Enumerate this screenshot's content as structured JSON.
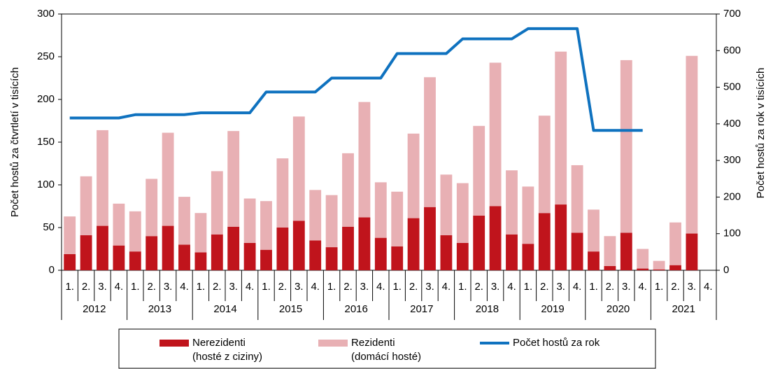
{
  "chart_data": {
    "type": "bar",
    "categories": [
      "1.",
      "2.",
      "3.",
      "4.",
      "1.",
      "2.",
      "3.",
      "4.",
      "1.",
      "2.",
      "3.",
      "4.",
      "1.",
      "2.",
      "3.",
      "4.",
      "1.",
      "2.",
      "3.",
      "4.",
      "1.",
      "2.",
      "3.",
      "4.",
      "1.",
      "2.",
      "3.",
      "4.",
      "1.",
      "2.",
      "3.",
      "4.",
      "1.",
      "2.",
      "3.",
      "4.",
      "1.",
      "2.",
      "3.",
      "4."
    ],
    "years": [
      "2012",
      "2013",
      "2014",
      "2015",
      "2016",
      "2017",
      "2018",
      "2019",
      "2020",
      "2021"
    ],
    "y_label": "Počet hostů za čtvrtletí v tisících",
    "y2_label": "Počet hostů za rok v tisících",
    "ylim": [
      0,
      300
    ],
    "yticks": [
      0,
      50,
      100,
      150,
      200,
      250,
      300
    ],
    "y2lim": [
      0,
      700
    ],
    "y2ticks": [
      0,
      100,
      200,
      300,
      400,
      500,
      600,
      700
    ],
    "stacked": true,
    "series": [
      {
        "name": "Nerezidenti",
        "legend_sublabel": "(hosté z ciziny)",
        "color": "#c0141c",
        "type": "bar",
        "values": [
          19,
          41,
          52,
          29,
          22,
          40,
          52,
          30,
          21,
          42,
          51,
          32,
          24,
          50,
          58,
          35,
          27,
          51,
          62,
          38,
          28,
          61,
          74,
          41,
          32,
          64,
          75,
          42,
          31,
          67,
          77,
          44,
          22,
          5,
          44,
          2,
          1,
          6,
          43,
          null
        ]
      },
      {
        "name": "Rezidenti",
        "legend_sublabel": "(domácí hosté)",
        "color": "#e8b0b4",
        "type": "bar",
        "values": [
          44,
          69,
          112,
          49,
          47,
          67,
          109,
          56,
          46,
          74,
          112,
          52,
          57,
          81,
          122,
          59,
          61,
          86,
          135,
          65,
          64,
          99,
          152,
          71,
          70,
          105,
          168,
          75,
          67,
          114,
          179,
          79,
          49,
          35,
          202,
          23,
          10,
          50,
          208,
          null
        ]
      },
      {
        "name": "Počet hostů za rok",
        "color": "#0f72bf",
        "type": "line",
        "axis": "y2",
        "values": [
          416,
          416,
          416,
          416,
          425,
          425,
          425,
          425,
          430,
          430,
          430,
          430,
          487,
          487,
          487,
          487,
          525,
          525,
          525,
          525,
          592,
          592,
          592,
          592,
          632,
          632,
          632,
          632,
          660,
          660,
          660,
          660,
          382,
          382,
          382,
          382,
          null,
          null,
          null,
          null
        ]
      }
    ]
  }
}
